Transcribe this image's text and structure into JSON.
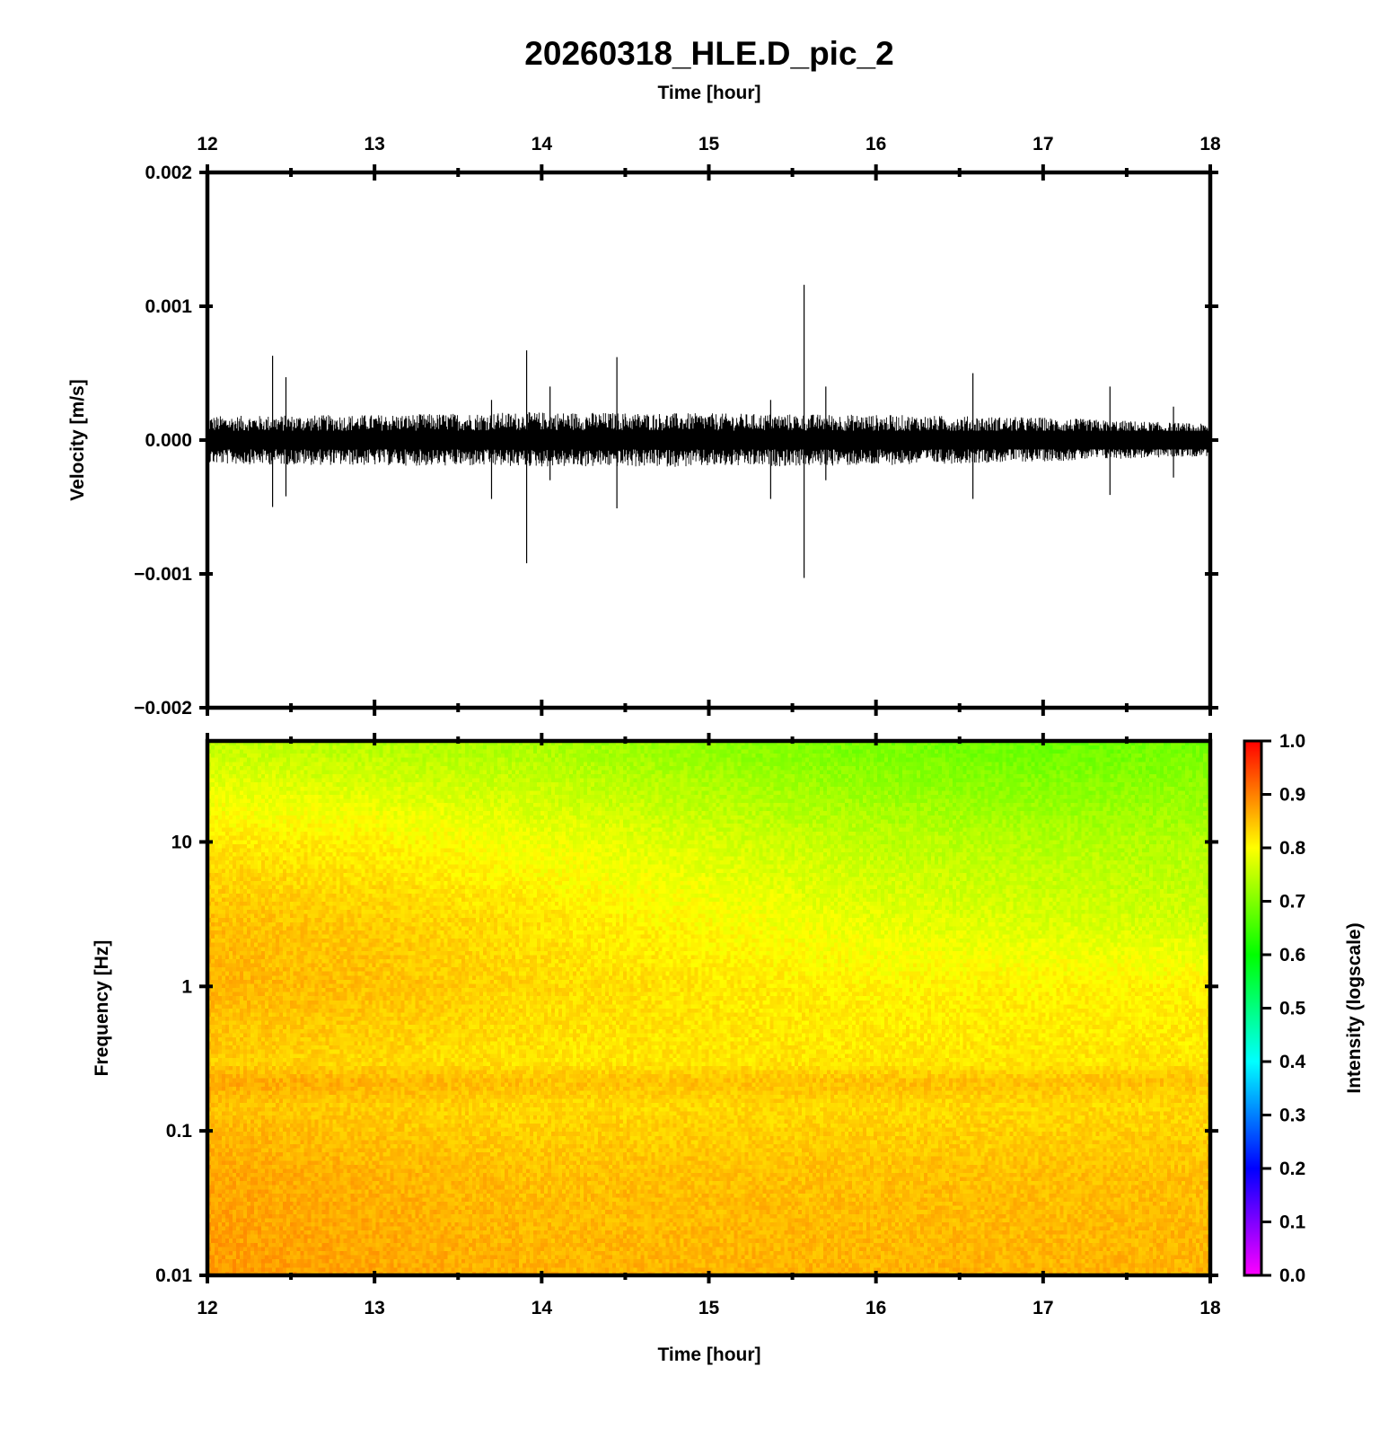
{
  "figure": {
    "title": "20260318_HLE.D_pic_2",
    "top_xlabel": "Time [hour]",
    "bottom_xlabel": "Time [hour]"
  },
  "chart_data": [
    {
      "type": "line",
      "name": "waveform",
      "xlabel": "Time [hour]",
      "ylabel": "Velocity [m/s]",
      "xlim": [
        12,
        18
      ],
      "ylim": [
        -0.002,
        0.002
      ],
      "x_ticks": [
        "12",
        "13",
        "14",
        "15",
        "16",
        "17",
        "18"
      ],
      "y_ticks": [
        "0.002",
        "0.001",
        "0.000",
        "−0.001",
        "−0.002"
      ],
      "y_tick_values": [
        0.002,
        0.001,
        0.0,
        -0.001,
        -0.002
      ],
      "x_tick_position": "top",
      "grid": false,
      "background_noise_envelope": {
        "x": [
          12,
          13,
          14,
          15,
          16,
          17,
          18
        ],
        "upper": [
          0.00018,
          0.00019,
          0.00021,
          0.0002,
          0.00019,
          0.00017,
          0.00012
        ],
        "lower": [
          -0.00018,
          -0.00019,
          -0.0002,
          -0.0002,
          -0.00019,
          -0.00016,
          -0.00012
        ]
      },
      "spikes": [
        {
          "x": 12.39,
          "max": 0.00063,
          "min": -0.0005
        },
        {
          "x": 12.47,
          "max": 0.00047,
          "min": -0.00042
        },
        {
          "x": 13.7,
          "max": 0.0003,
          "min": -0.00044
        },
        {
          "x": 13.91,
          "max": 0.00067,
          "min": -0.00092
        },
        {
          "x": 14.05,
          "max": 0.0004,
          "min": -0.0003
        },
        {
          "x": 14.45,
          "max": 0.00062,
          "min": -0.00051
        },
        {
          "x": 15.37,
          "max": 0.0003,
          "min": -0.00044
        },
        {
          "x": 15.57,
          "max": 0.00116,
          "min": -0.00103
        },
        {
          "x": 15.7,
          "max": 0.0004,
          "min": -0.0003
        },
        {
          "x": 16.58,
          "max": 0.0005,
          "min": -0.00044
        },
        {
          "x": 17.4,
          "max": 0.0004,
          "min": -0.00041
        },
        {
          "x": 17.78,
          "max": 0.00025,
          "min": -0.00028
        }
      ]
    },
    {
      "type": "heatmap",
      "name": "spectrogram",
      "xlabel": "Time [hour]",
      "ylabel": "Frequency [Hz]",
      "xlim": [
        12,
        18
      ],
      "ylim": [
        0.01,
        50
      ],
      "yscale": "log",
      "x_ticks": [
        "12",
        "13",
        "14",
        "15",
        "16",
        "17",
        "18"
      ],
      "y_ticks": [
        "10",
        "1",
        "0.1",
        "0.01"
      ],
      "y_tick_values": [
        10,
        1,
        0.1,
        0.01
      ],
      "grid": false,
      "intensity_grid": {
        "time_hours": [
          12,
          13,
          14,
          15,
          16,
          17,
          18
        ],
        "freq_hz": [
          0.01,
          0.05,
          0.15,
          0.22,
          0.3,
          1,
          3,
          10,
          50
        ],
        "values": [
          [
            0.88,
            0.87,
            0.86,
            0.86,
            0.86,
            0.86,
            0.86
          ],
          [
            0.87,
            0.86,
            0.85,
            0.85,
            0.85,
            0.85,
            0.85
          ],
          [
            0.85,
            0.84,
            0.83,
            0.83,
            0.83,
            0.83,
            0.83
          ],
          [
            0.87,
            0.86,
            0.85,
            0.85,
            0.85,
            0.85,
            0.85
          ],
          [
            0.84,
            0.83,
            0.82,
            0.82,
            0.82,
            0.82,
            0.82
          ],
          [
            0.86,
            0.85,
            0.83,
            0.82,
            0.81,
            0.81,
            0.81
          ],
          [
            0.85,
            0.84,
            0.82,
            0.8,
            0.78,
            0.77,
            0.76
          ],
          [
            0.82,
            0.81,
            0.79,
            0.77,
            0.75,
            0.74,
            0.74
          ],
          [
            0.75,
            0.74,
            0.73,
            0.71,
            0.69,
            0.68,
            0.69
          ]
        ]
      },
      "colorbar": {
        "label": "Intensity (logscale)",
        "min": 0.0,
        "max": 1.0,
        "ticks": [
          "1.0",
          "0.9",
          "0.8",
          "0.7",
          "0.6",
          "0.5",
          "0.4",
          "0.3",
          "0.2",
          "0.1",
          "0.0"
        ],
        "tick_values": [
          1.0,
          0.9,
          0.8,
          0.7,
          0.6,
          0.5,
          0.4,
          0.3,
          0.2,
          0.1,
          0.0
        ],
        "colormap": [
          "#ff00ff",
          "#0000ff",
          "#00ffff",
          "#00ff00",
          "#ffff00",
          "#ff0000"
        ]
      }
    }
  ]
}
